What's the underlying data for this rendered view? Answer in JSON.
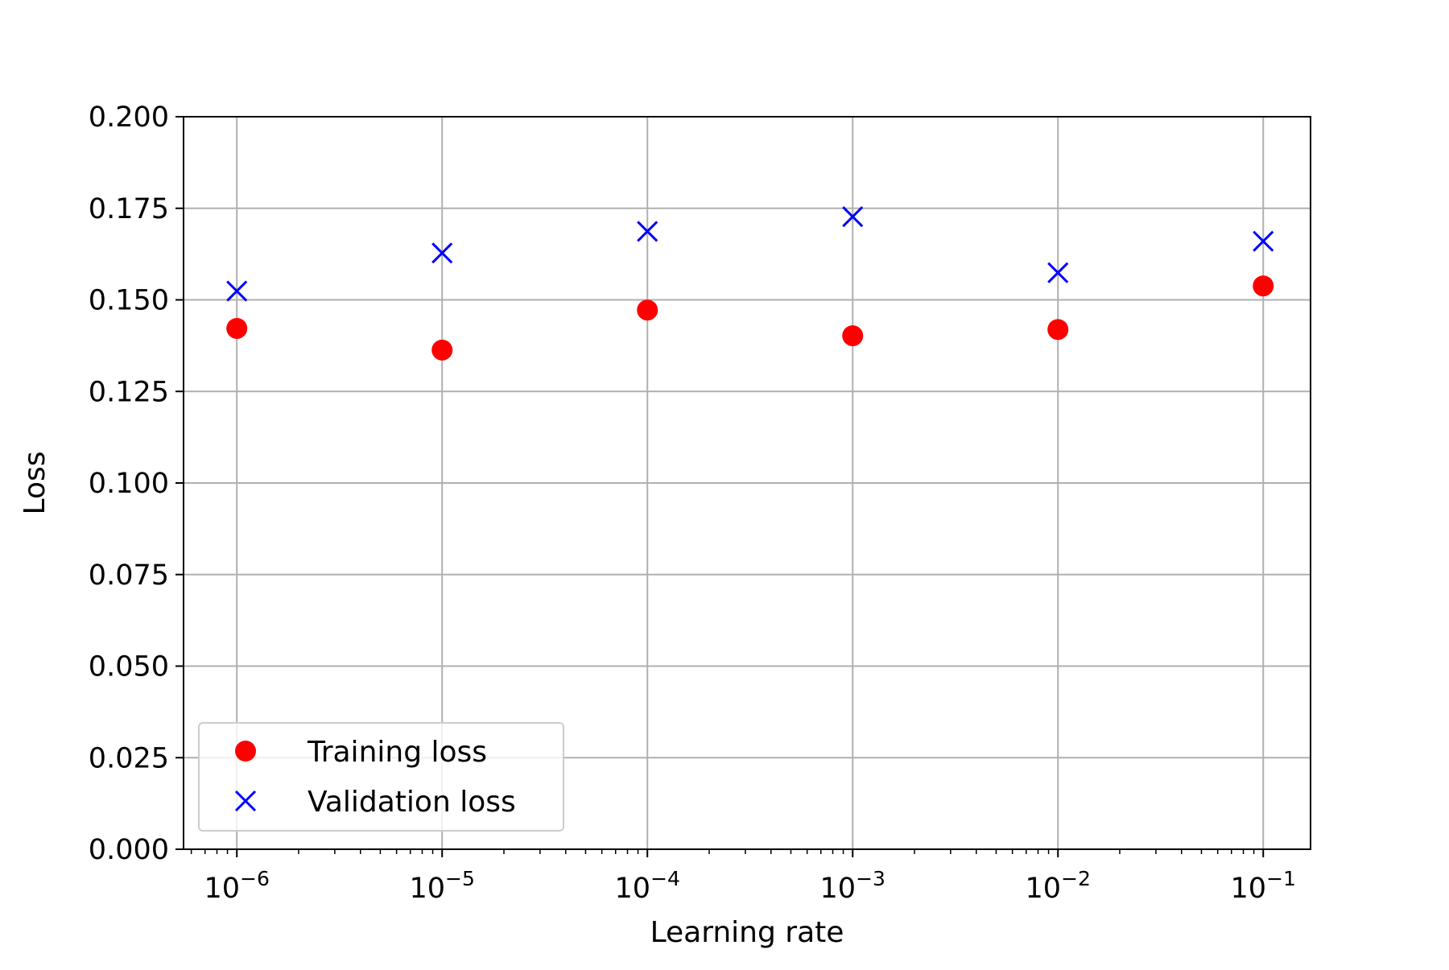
{
  "chart_data": {
    "type": "scatter",
    "title": "",
    "xlabel": "Learning rate",
    "ylabel": "Loss",
    "xscale": "log",
    "x": [
      1e-06,
      1e-05,
      0.0001,
      0.001,
      0.01,
      0.1
    ],
    "xlim": [
      5.5e-07,
      0.17
    ],
    "ylim": [
      0.0,
      0.2
    ],
    "x_ticks": [
      {
        "value": 1e-06,
        "base": "10",
        "exp": "−6"
      },
      {
        "value": 1e-05,
        "base": "10",
        "exp": "−5"
      },
      {
        "value": 0.0001,
        "base": "10",
        "exp": "−4"
      },
      {
        "value": 0.001,
        "base": "10",
        "exp": "−3"
      },
      {
        "value": 0.01,
        "base": "10",
        "exp": "−2"
      },
      {
        "value": 0.1,
        "base": "10",
        "exp": "−1"
      }
    ],
    "y_ticks": [
      {
        "value": 0.0,
        "label": "0.000"
      },
      {
        "value": 0.025,
        "label": "0.025"
      },
      {
        "value": 0.05,
        "label": "0.050"
      },
      {
        "value": 0.075,
        "label": "0.075"
      },
      {
        "value": 0.1,
        "label": "0.100"
      },
      {
        "value": 0.125,
        "label": "0.125"
      },
      {
        "value": 0.15,
        "label": "0.150"
      },
      {
        "value": 0.175,
        "label": "0.175"
      },
      {
        "value": 0.2,
        "label": "0.200"
      }
    ],
    "grid": true,
    "legend_position": "lower-left",
    "series": [
      {
        "name": "Training loss",
        "marker": "circle",
        "color": "#ff0000",
        "values": [
          0.1422,
          0.1363,
          0.1472,
          0.1402,
          0.1419,
          0.1538
        ]
      },
      {
        "name": "Validation loss",
        "marker": "x",
        "color": "#0000ff",
        "values": [
          0.1524,
          0.1628,
          0.1687,
          0.1727,
          0.1574,
          0.166
        ]
      }
    ]
  }
}
